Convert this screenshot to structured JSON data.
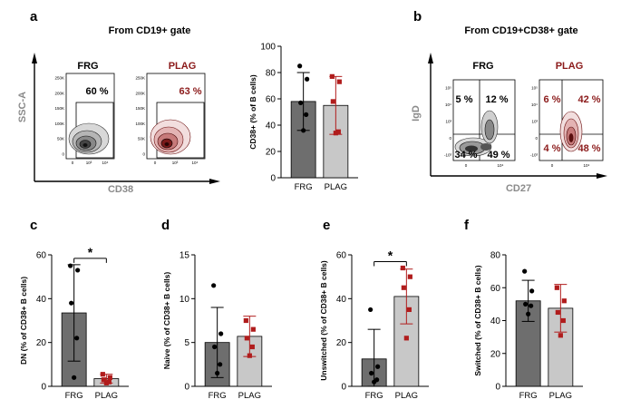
{
  "colors": {
    "frg_bar": "#6e6e6e",
    "plag_bar": "#c8c8c8",
    "plag_point": "#b01c1c",
    "plag_text": "#8b1a1a",
    "axis": "#000000",
    "gray_label": "#8a8a8a"
  },
  "panel_a": {
    "letter": "a",
    "title": "From CD19+ gate",
    "flow": {
      "yaxis": "SSC-A",
      "xaxis": "CD38",
      "frg": {
        "label": "FRG",
        "pct": "60 %"
      },
      "plag": {
        "label": "PLAG",
        "pct": "63 %"
      },
      "yticks": [
        "250K",
        "200K",
        "150K",
        "100K",
        "50K",
        "0"
      ],
      "xticks": [
        "0",
        "10³",
        "10⁴"
      ]
    }
  },
  "panel_b": {
    "letter": "b",
    "title": "From CD19+CD38+ gate",
    "flow": {
      "yaxis": "IgD",
      "xaxis": "CD27",
      "frg": {
        "label": "FRG",
        "q_ul": "5 %",
        "q_ur": "12 %",
        "q_ll": "34 %",
        "q_lr": "49 %"
      },
      "plag": {
        "label": "PLAG",
        "q_ul": "6 %",
        "q_ur": "42 %",
        "q_ll": "4 %",
        "q_lr": "48 %"
      },
      "yticks": [
        "10⁵",
        "10⁴",
        "10³",
        "0",
        "-10³"
      ],
      "xticks": [
        "0",
        "10⁴"
      ]
    }
  },
  "chart_data": [
    {
      "id": "a",
      "type": "bar",
      "categories": [
        "FRG",
        "PLAG"
      ],
      "ylabel": "CD38+ (% of B cells)",
      "ylim": [
        0,
        100
      ],
      "yticks": [
        0,
        20,
        40,
        60,
        80,
        100
      ],
      "means": [
        58,
        55
      ],
      "errors": [
        22,
        22
      ],
      "points": [
        [
          85,
          75,
          57,
          48,
          36
        ],
        [
          77,
          73,
          58,
          35,
          34
        ]
      ],
      "significance": ""
    },
    {
      "id": "c",
      "letter": "c",
      "type": "bar",
      "categories": [
        "FRG",
        "PLAG"
      ],
      "ylabel": "DN (% of CD38+ B cells)",
      "ylim": [
        0,
        60
      ],
      "yticks": [
        0,
        20,
        40,
        60
      ],
      "means": [
        33.5,
        3.5
      ],
      "errors": [
        22,
        2
      ],
      "points": [
        [
          55,
          53,
          38,
          22,
          4
        ],
        [
          5.5,
          4,
          3,
          2,
          1.5
        ]
      ],
      "significance": "*"
    },
    {
      "id": "d",
      "letter": "d",
      "type": "bar",
      "categories": [
        "FRG",
        "PLAG"
      ],
      "ylabel": "Naive (% of CD38+ B cells)",
      "ylim": [
        0,
        15
      ],
      "yticks": [
        0,
        5,
        10,
        15
      ],
      "means": [
        5,
        5.7
      ],
      "errors": [
        4,
        2.3
      ],
      "points": [
        [
          11.5,
          6,
          4.5,
          2.5,
          1.5
        ],
        [
          7.5,
          6.5,
          5.5,
          4.5,
          3.5
        ]
      ],
      "significance": ""
    },
    {
      "id": "e",
      "letter": "e",
      "type": "bar",
      "categories": [
        "FRG",
        "PLAG"
      ],
      "ylabel": "Unswitched (% of CD38+ B cells)",
      "ylim": [
        0,
        60
      ],
      "yticks": [
        0,
        20,
        40,
        60
      ],
      "means": [
        12.5,
        41
      ],
      "errors": [
        13.5,
        12.5
      ],
      "points": [
        [
          35,
          9,
          6,
          3,
          2
        ],
        [
          54,
          50,
          45,
          35,
          22
        ]
      ],
      "significance": "*"
    },
    {
      "id": "f",
      "letter": "f",
      "type": "bar",
      "categories": [
        "FRG",
        "PLAG"
      ],
      "ylabel": "Switched (% of CD38+ B cells)",
      "ylim": [
        0,
        80
      ],
      "yticks": [
        0,
        20,
        40,
        60,
        80
      ],
      "means": [
        52,
        47.5
      ],
      "errors": [
        12.5,
        14.5
      ],
      "points": [
        [
          70,
          58,
          50,
          49,
          44
        ],
        [
          60,
          52,
          45,
          40,
          31
        ]
      ],
      "significance": ""
    }
  ]
}
